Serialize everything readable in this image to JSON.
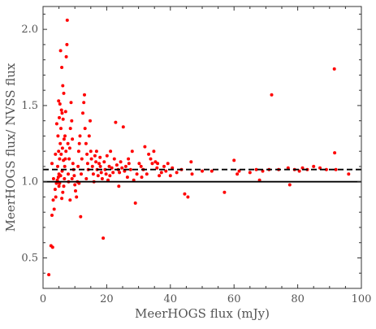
{
  "chart_data": {
    "type": "scatter",
    "title": "",
    "xlabel": "MeerHOGS flux (mJy)",
    "ylabel": "MeerHOGS flux/ NVSS flux",
    "xlim": [
      0,
      100
    ],
    "ylim": [
      0.3,
      2.15
    ],
    "grid": false,
    "legend": "none",
    "x_ticks": [
      0,
      20,
      40,
      60,
      80,
      100
    ],
    "x_tick_labels": [
      "0",
      "20",
      "40",
      "60",
      "80",
      "100"
    ],
    "y_ticks": [
      0.5,
      1.0,
      1.5,
      2.0
    ],
    "y_tick_labels": [
      "0.5",
      "1.0",
      "1.5",
      "2.0"
    ],
    "point_color": "#ff0000",
    "reference_lines": [
      {
        "y": 1.0,
        "style": "solid",
        "color": "#000000"
      },
      {
        "y": 1.08,
        "style": "dashed",
        "color": "#000000"
      }
    ],
    "series": [
      {
        "points": [
          [
            1.8,
            0.39
          ],
          [
            2.5,
            0.58
          ],
          [
            3.0,
            0.57
          ],
          [
            2.8,
            0.78
          ],
          [
            3.5,
            0.82
          ],
          [
            3.2,
            0.88
          ],
          [
            4.0,
            0.9
          ],
          [
            3.8,
            0.95
          ],
          [
            4.2,
            0.99
          ],
          [
            4.5,
            1.01
          ],
          [
            4.8,
            1.03
          ],
          [
            5.0,
            1.05
          ],
          [
            4.6,
            1.1
          ],
          [
            5.2,
            1.15
          ],
          [
            4.9,
            1.2
          ],
          [
            5.4,
            1.25
          ],
          [
            4.7,
            1.3
          ],
          [
            5.6,
            1.35
          ],
          [
            5.1,
            1.42
          ],
          [
            5.8,
            1.47
          ],
          [
            4.9,
            1.53
          ],
          [
            5.3,
            1.51
          ],
          [
            5.5,
            1.86
          ],
          [
            5.9,
            1.75
          ],
          [
            6.2,
            1.63
          ],
          [
            6.5,
            1.58
          ],
          [
            6.0,
            1.45
          ],
          [
            6.3,
            1.41
          ],
          [
            6.6,
            1.28
          ],
          [
            6.1,
            1.22
          ],
          [
            5.7,
            1.18
          ],
          [
            6.4,
            1.14
          ],
          [
            6.8,
            1.1
          ],
          [
            6.0,
            1.07
          ],
          [
            5.5,
            1.04
          ],
          [
            6.7,
            1.02
          ],
          [
            5.2,
            0.99
          ],
          [
            5.0,
            0.97
          ],
          [
            6.2,
            0.93
          ],
          [
            5.9,
            0.89
          ],
          [
            6.5,
            0.97
          ],
          [
            6.9,
            1.3
          ],
          [
            7.1,
            1.46
          ],
          [
            7.3,
            1.82
          ],
          [
            7.5,
            1.9
          ],
          [
            7.6,
            2.06
          ],
          [
            7.8,
            1.25
          ],
          [
            7.2,
            1.2
          ],
          [
            7.9,
            1.05
          ],
          [
            8.0,
            1.0
          ],
          [
            8.2,
            1.15
          ],
          [
            8.4,
            1.22
          ],
          [
            8.6,
            1.35
          ],
          [
            8.8,
            1.52
          ],
          [
            9.0,
            1.4
          ],
          [
            9.2,
            1.28
          ],
          [
            9.4,
            1.12
          ],
          [
            9.6,
            1.08
          ],
          [
            9.8,
            1.04
          ],
          [
            10.0,
            0.98
          ],
          [
            10.2,
            0.94
          ],
          [
            10.5,
            0.9
          ],
          [
            10.8,
            1.0
          ],
          [
            11.0,
            1.1
          ],
          [
            11.2,
            1.2
          ],
          [
            11.4,
            1.25
          ],
          [
            11.6,
            1.3
          ],
          [
            11.8,
            0.77
          ],
          [
            12.0,
            1.05
          ],
          [
            12.2,
            1.15
          ],
          [
            12.5,
            1.45
          ],
          [
            12.8,
            1.52
          ],
          [
            13.0,
            1.57
          ],
          [
            13.2,
            1.35
          ],
          [
            13.5,
            1.25
          ],
          [
            13.8,
            1.18
          ],
          [
            14.0,
            1.12
          ],
          [
            14.2,
            1.08
          ],
          [
            14.5,
            1.3
          ],
          [
            14.8,
            1.4
          ],
          [
            15.0,
            1.2
          ],
          [
            15.2,
            1.15
          ],
          [
            15.5,
            1.1
          ],
          [
            15.8,
            1.05
          ],
          [
            16.0,
            1.0
          ],
          [
            16.3,
            1.17
          ],
          [
            16.6,
            1.13
          ],
          [
            17.0,
            1.08
          ],
          [
            17.3,
            1.04
          ],
          [
            17.6,
            1.12
          ],
          [
            18.0,
            1.1
          ],
          [
            18.3,
            1.06
          ],
          [
            18.6,
            1.02
          ],
          [
            18.9,
            0.63
          ],
          [
            19.2,
            1.13
          ],
          [
            19.5,
            1.08
          ],
          [
            19.8,
            1.05
          ],
          [
            20.1,
            1.17
          ],
          [
            20.4,
            1.01
          ],
          [
            20.8,
            1.1
          ],
          [
            21.2,
            1.2
          ],
          [
            21.6,
            1.09
          ],
          [
            22.0,
            1.06
          ],
          [
            22.4,
            1.15
          ],
          [
            22.8,
            1.39
          ],
          [
            23.2,
            1.11
          ],
          [
            23.6,
            1.08
          ],
          [
            24.0,
            1.06
          ],
          [
            24.4,
            1.13
          ],
          [
            24.8,
            1.09
          ],
          [
            25.2,
            1.36
          ],
          [
            25.6,
            1.07
          ],
          [
            26.0,
            1.1
          ],
          [
            26.5,
            1.03
          ],
          [
            27.0,
            1.12
          ],
          [
            27.5,
            1.08
          ],
          [
            28.0,
            1.2
          ],
          [
            28.5,
            1.01
          ],
          [
            29.0,
            0.86
          ],
          [
            29.5,
            1.05
          ],
          [
            30.2,
            1.12
          ],
          [
            30.8,
            1.1
          ],
          [
            31.5,
            1.08
          ],
          [
            32.0,
            1.23
          ],
          [
            32.6,
            1.05
          ],
          [
            33.2,
            1.18
          ],
          [
            33.8,
            1.15
          ],
          [
            34.3,
            1.12
          ],
          [
            34.8,
            1.2
          ],
          [
            35.3,
            1.13
          ],
          [
            35.8,
            1.09
          ],
          [
            36.5,
            1.04
          ],
          [
            37.2,
            1.06
          ],
          [
            38.0,
            1.1
          ],
          [
            38.6,
            1.07
          ],
          [
            39.2,
            1.12
          ],
          [
            40.0,
            1.04
          ],
          [
            40.6,
            1.09
          ],
          [
            43.5,
            1.08
          ],
          [
            44.5,
            0.92
          ],
          [
            45.5,
            0.9
          ],
          [
            46.5,
            1.13
          ],
          [
            46.8,
            1.05
          ],
          [
            50.0,
            1.07
          ],
          [
            53.0,
            1.07
          ],
          [
            57.0,
            0.93
          ],
          [
            60.0,
            1.14
          ],
          [
            61.0,
            1.05
          ],
          [
            61.6,
            1.07
          ],
          [
            65.0,
            1.06
          ],
          [
            67.0,
            1.08
          ],
          [
            68.0,
            1.01
          ],
          [
            69.0,
            1.07
          ],
          [
            71.0,
            1.08
          ],
          [
            71.8,
            1.57
          ],
          [
            74.0,
            1.08
          ],
          [
            77.0,
            1.09
          ],
          [
            77.5,
            0.98
          ],
          [
            79.0,
            1.08
          ],
          [
            80.5,
            1.07
          ],
          [
            81.5,
            1.09
          ],
          [
            83.0,
            1.08
          ],
          [
            85.0,
            1.1
          ],
          [
            87.0,
            1.09
          ],
          [
            89.0,
            1.08
          ],
          [
            91.5,
            1.74
          ],
          [
            91.6,
            1.19
          ],
          [
            92.0,
            1.08
          ],
          [
            96.0,
            1.05
          ],
          [
            2.8,
            1.12
          ],
          [
            3.3,
            1.02
          ],
          [
            3.9,
            1.18
          ],
          [
            4.3,
            1.38
          ],
          [
            7.0,
            1.15
          ],
          [
            8.5,
            0.88
          ],
          [
            9.1,
            1.02
          ],
          [
            11.3,
            0.99
          ],
          [
            13.6,
            1.02
          ],
          [
            16.8,
            1.2
          ],
          [
            17.9,
            1.16
          ],
          [
            21.0,
            1.04
          ],
          [
            23.8,
            0.97
          ],
          [
            26.8,
            1.15
          ],
          [
            31.0,
            1.03
          ],
          [
            36.0,
            1.12
          ],
          [
            42.0,
            1.06
          ]
        ]
      }
    ]
  }
}
